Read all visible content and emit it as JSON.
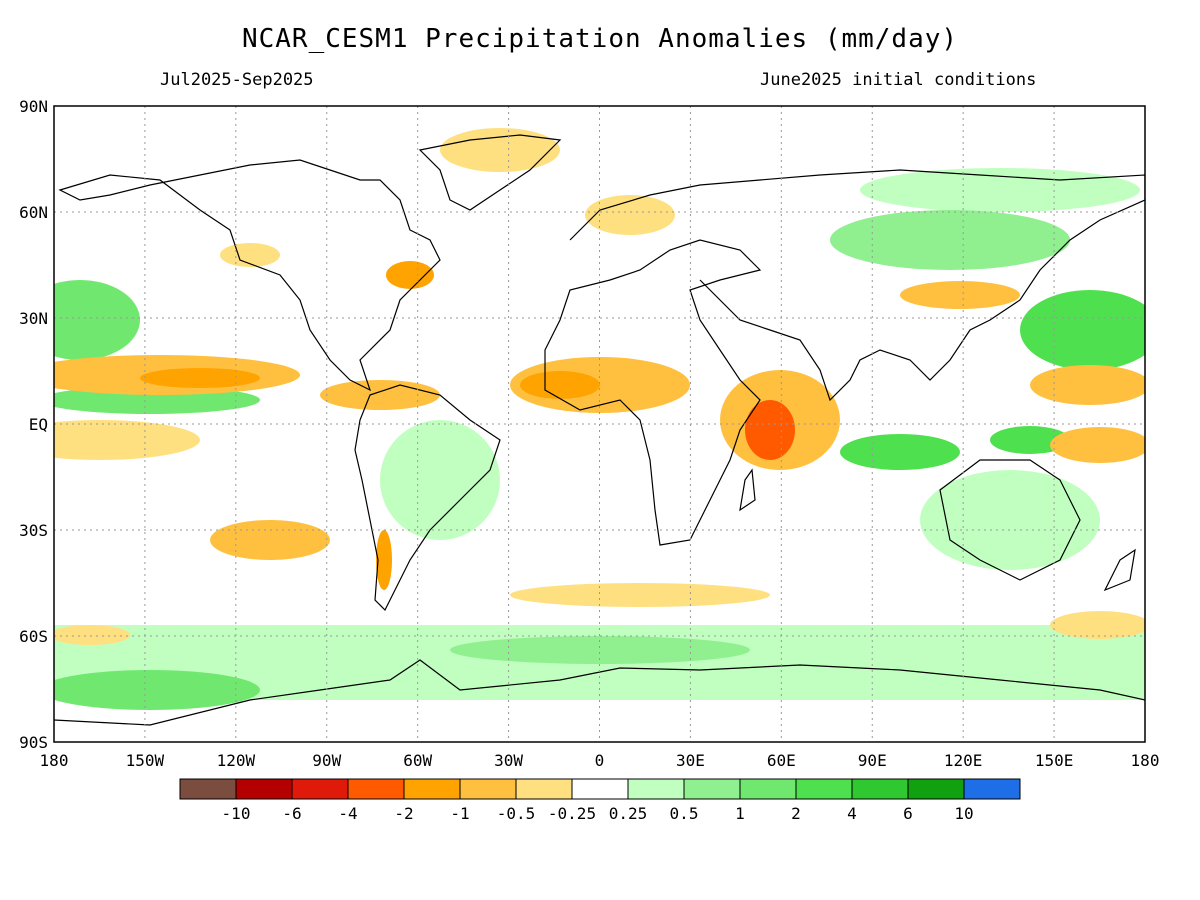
{
  "header": {
    "title": "NCAR_CESM1 Precipitation Anomalies (mm/day)",
    "period": "Jul2025-Sep2025",
    "init": "June2025 initial conditions"
  },
  "axes": {
    "lat_labels": [
      "90N",
      "60N",
      "30N",
      "EQ",
      "30S",
      "60S",
      "90S"
    ],
    "lon_labels": [
      "180",
      "150W",
      "120W",
      "90W",
      "60W",
      "30W",
      "0",
      "30E",
      "60E",
      "90E",
      "120E",
      "150E",
      "180"
    ]
  },
  "colorbar": {
    "colors": [
      "#7b4d3f",
      "#b50000",
      "#e01a0a",
      "#ff5a00",
      "#ffa300",
      "#ffc040",
      "#ffe080",
      "#ffffff",
      "#c0ffc0",
      "#90f090",
      "#70e870",
      "#4ee04e",
      "#30c830",
      "#10a010",
      "#1e6ee8"
    ],
    "labels": [
      "-10",
      "-6",
      "-4",
      "-2",
      "-1",
      "-0.5",
      "-0.25",
      "0.25",
      "0.5",
      "1",
      "2",
      "4",
      "6",
      "10"
    ]
  },
  "colors": {
    "dry_light": "#ffe080",
    "dry_mid": "#ffc040",
    "dry_strong": "#ffa300",
    "dry_vstrong": "#ff5a00",
    "wet_light": "#c0ffc0",
    "wet_mid": "#70e870",
    "wet_strong": "#4ee04e",
    "coast": "#000000",
    "grid": "#999999"
  }
}
